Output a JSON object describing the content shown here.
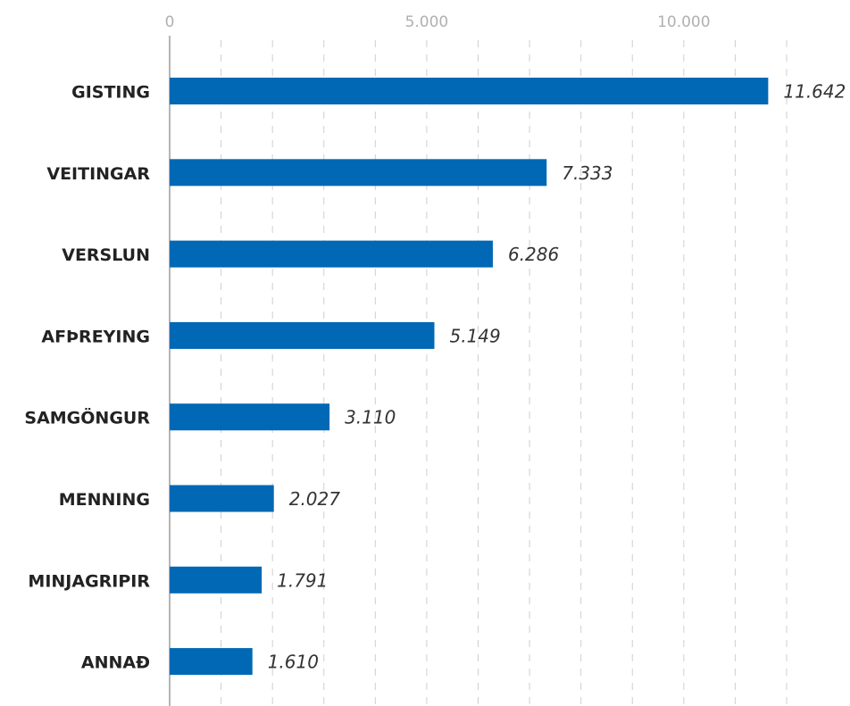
{
  "chart_data": {
    "type": "hbar",
    "categories": [
      "GISTING",
      "VEITINGAR",
      "VERSLUN",
      "AFÞREYING",
      "SAMGÖNGUR",
      "MENNING",
      "MINJAGRIPIR",
      "ANNAÐ"
    ],
    "values": [
      11642,
      7333,
      6286,
      5149,
      3110,
      2027,
      1791,
      1610
    ],
    "value_labels": [
      "11.642",
      "7.333",
      "6.286",
      "5.149",
      "3.110",
      "2.027",
      "1.791",
      "1.610"
    ],
    "color": "#0068b4",
    "xlim": [
      0,
      12000
    ],
    "xticks": [
      0,
      {
        "value": 5000,
        "label": "5.000"
      },
      {
        "value": 10000,
        "label": "10.000"
      }
    ],
    "minor_xticks": [
      1000,
      2000,
      3000,
      4000,
      5000,
      6000,
      7000,
      8000,
      9000,
      10000,
      11000,
      12000
    ],
    "grid": true
  }
}
